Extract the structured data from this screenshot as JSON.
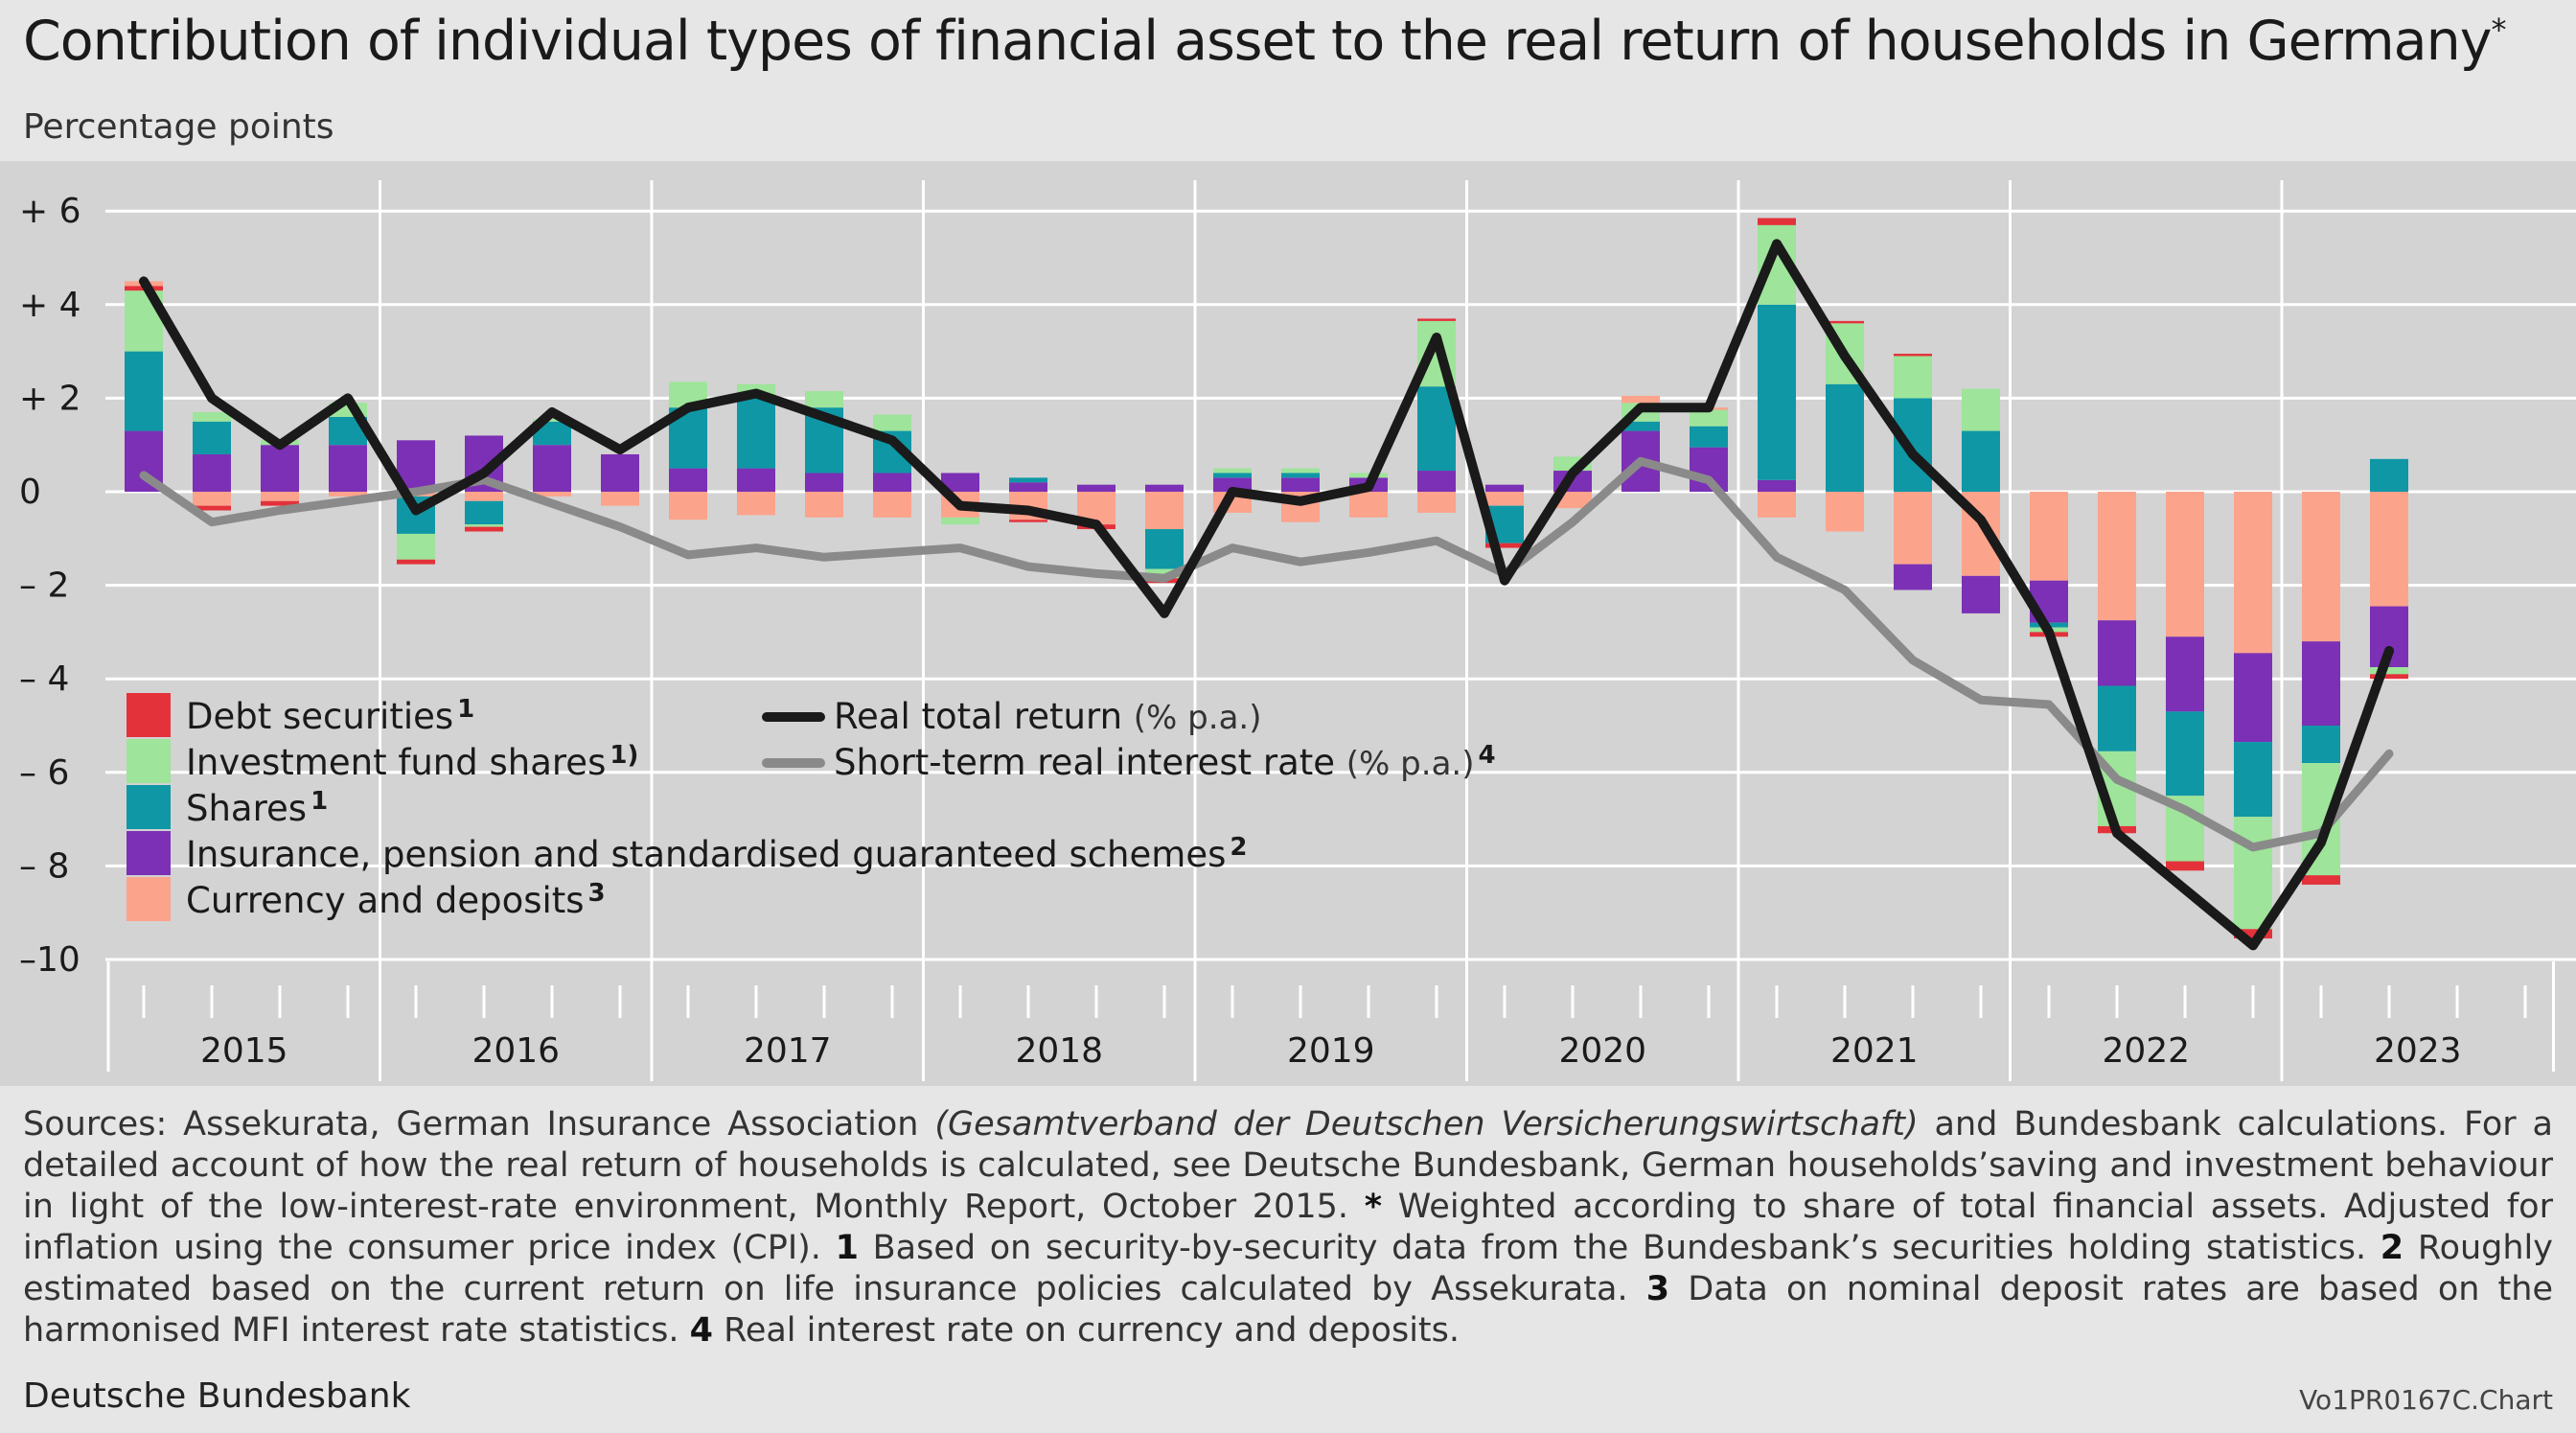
{
  "title": "Contribution of individual types of financial asset to the real return of households in Germany",
  "title_mark": "*",
  "subtitle": "Percentage points",
  "footnote": {
    "part1": "Sources: Assekurata, German Insurance Association ",
    "part1_italic": "(Gesamtverband der Deutschen Versicherungswirtschaft)",
    "part2": " and Bundesbank calculations. For a detailed account of how the real return of households is calculated, see Deutsche Bundesbank, German households’saving and investment behaviour in light of the low-interest-rate environment, Monthly Report, October 2015. ",
    "m_star": "*",
    "n_star": " Weighted according to share of total financial assets. Adjusted for inflation using the consumer price index (CPI). ",
    "m1": "1",
    "n1": " Based on security-by-security data from the Bundesbank’s securities holding statistics. ",
    "m2": "2",
    "n2": " Roughly estimated based on the current return on life insurance policies calculated by Assekurata. ",
    "m3": "3",
    "n3": " Data on nominal deposit rates are based on the harmonised MFI interest rate statistics. ",
    "m4": "4",
    "n4": " Real interest rate on currency and deposits."
  },
  "source": "Deutsche Bundesbank",
  "chart_id": "Vo1PR0167C.Chart",
  "colors": {
    "debt": "#e3323a",
    "funds": "#9ee49a",
    "shares": "#0f97a6",
    "insurance": "#7b30b5",
    "deposits": "#fca38c",
    "real_total": "#1a1a1a",
    "short_term": "#8a8a8a",
    "plot_bg": "#d3d3d3",
    "grid": "#ffffff"
  },
  "chart_data": {
    "type": "bar",
    "stacked": true,
    "ylim": [
      -10,
      6
    ],
    "y_ticks": [
      6,
      4,
      2,
      0,
      -2,
      -4,
      -6,
      -8,
      -10
    ],
    "y_tick_labels": [
      "+ 6",
      "+ 4",
      "+ 2",
      "0",
      "– 2",
      "– 4",
      "– 6",
      "– 8",
      "–10"
    ],
    "years": [
      "2015",
      "2016",
      "2017",
      "2018",
      "2019",
      "2020",
      "2021",
      "2022",
      "2023"
    ],
    "quarters": [
      "2015 Q1",
      "2015 Q2",
      "2015 Q3",
      "2015 Q4",
      "2016 Q1",
      "2016 Q2",
      "2016 Q3",
      "2016 Q4",
      "2017 Q1",
      "2017 Q2",
      "2017 Q3",
      "2017 Q4",
      "2018 Q1",
      "2018 Q2",
      "2018 Q3",
      "2018 Q4",
      "2019 Q1",
      "2019 Q2",
      "2019 Q3",
      "2019 Q4",
      "2020 Q1",
      "2020 Q2",
      "2020 Q3",
      "2020 Q4",
      "2021 Q1",
      "2021 Q2",
      "2021 Q3",
      "2021 Q4",
      "2022 Q1",
      "2022 Q2",
      "2022 Q3",
      "2022 Q4",
      "2023 Q1",
      "2023 Q2"
    ],
    "bar_series": [
      {
        "name": "Debt securities",
        "mark": "1",
        "key": "debt",
        "values": [
          0.1,
          -0.1,
          -0.1,
          0.0,
          -0.1,
          -0.1,
          0.0,
          0.0,
          0.0,
          0.0,
          0.0,
          0.0,
          0.0,
          -0.05,
          -0.1,
          -0.1,
          0.0,
          0.0,
          0.0,
          0.05,
          -0.1,
          0.0,
          0.0,
          0.0,
          0.15,
          0.05,
          0.05,
          0.0,
          -0.1,
          -0.15,
          -0.2,
          -0.2,
          -0.2,
          -0.1
        ]
      },
      {
        "name": "Investment fund shares",
        "mark": "1)",
        "key": "funds",
        "values": [
          1.3,
          0.2,
          0.1,
          0.3,
          -0.55,
          -0.05,
          0.05,
          0.0,
          0.55,
          0.3,
          0.35,
          0.35,
          -0.15,
          0.0,
          0.0,
          -0.2,
          0.1,
          0.1,
          0.1,
          1.4,
          0.0,
          0.3,
          0.4,
          0.35,
          1.7,
          1.3,
          0.9,
          0.9,
          -0.1,
          -1.6,
          -1.4,
          -2.4,
          -2.4,
          -0.15
        ]
      },
      {
        "name": "Shares",
        "mark": "1",
        "key": "shares",
        "values": [
          1.7,
          0.7,
          0.0,
          0.6,
          -0.8,
          -0.5,
          0.5,
          0.0,
          1.3,
          1.5,
          1.4,
          0.9,
          0.0,
          0.1,
          0.0,
          -0.85,
          0.1,
          0.1,
          0.0,
          1.8,
          -0.8,
          0.0,
          0.2,
          0.45,
          3.75,
          2.3,
          2.0,
          1.3,
          -0.1,
          -1.4,
          -1.8,
          -1.6,
          -0.8,
          0.7
        ]
      },
      {
        "name": "Insurance, pension and standardised guaranteed schemes",
        "mark": "2",
        "key": "insurance",
        "values": [
          1.3,
          0.8,
          1.0,
          1.0,
          1.1,
          1.2,
          1.0,
          0.8,
          0.5,
          0.5,
          0.4,
          0.4,
          0.4,
          0.2,
          0.15,
          0.15,
          0.3,
          0.3,
          0.3,
          0.45,
          0.15,
          0.45,
          1.3,
          0.95,
          0.25,
          0.0,
          -0.55,
          -0.8,
          -0.9,
          -1.4,
          -1.6,
          -1.9,
          -1.8,
          -1.3
        ]
      },
      {
        "name": "Currency and deposits",
        "mark": "3",
        "key": "deposits",
        "values": [
          0.1,
          -0.3,
          -0.2,
          -0.1,
          -0.1,
          -0.2,
          -0.1,
          -0.3,
          -0.6,
          -0.5,
          -0.55,
          -0.55,
          -0.55,
          -0.6,
          -0.7,
          -0.8,
          -0.45,
          -0.65,
          -0.55,
          -0.45,
          -0.3,
          -0.35,
          0.15,
          0.05,
          -0.55,
          -0.85,
          -1.55,
          -1.8,
          -1.9,
          -2.75,
          -3.1,
          -3.45,
          -3.2,
          -2.45
        ]
      }
    ],
    "line_series": [
      {
        "name": "Real total return",
        "unit": "(% p.a.)",
        "key": "real_total",
        "values": [
          4.5,
          2.0,
          1.0,
          2.0,
          -0.4,
          0.4,
          1.7,
          0.9,
          1.8,
          2.1,
          1.6,
          1.1,
          -0.3,
          -0.4,
          -0.7,
          -2.6,
          0.0,
          -0.2,
          0.1,
          3.3,
          -1.9,
          0.4,
          1.8,
          1.8,
          5.3,
          2.9,
          0.8,
          -0.6,
          -3.0,
          -7.3,
          -8.5,
          -9.7,
          -7.5,
          -3.4
        ]
      },
      {
        "name": "Short-term real interest rate",
        "unit": "(% p.a.)",
        "mark": "4",
        "key": "short_term",
        "values": [
          0.35,
          -0.65,
          -0.4,
          -0.2,
          0.0,
          0.25,
          -0.25,
          -0.75,
          -1.35,
          -1.2,
          -1.4,
          -1.3,
          -1.2,
          -1.6,
          -1.75,
          -1.85,
          -1.2,
          -1.5,
          -1.3,
          -1.05,
          -1.75,
          -0.65,
          0.65,
          0.25,
          -1.4,
          -2.1,
          -3.6,
          -4.45,
          -4.55,
          -6.15,
          -6.8,
          -7.6,
          -7.3,
          -5.6
        ]
      }
    ]
  }
}
